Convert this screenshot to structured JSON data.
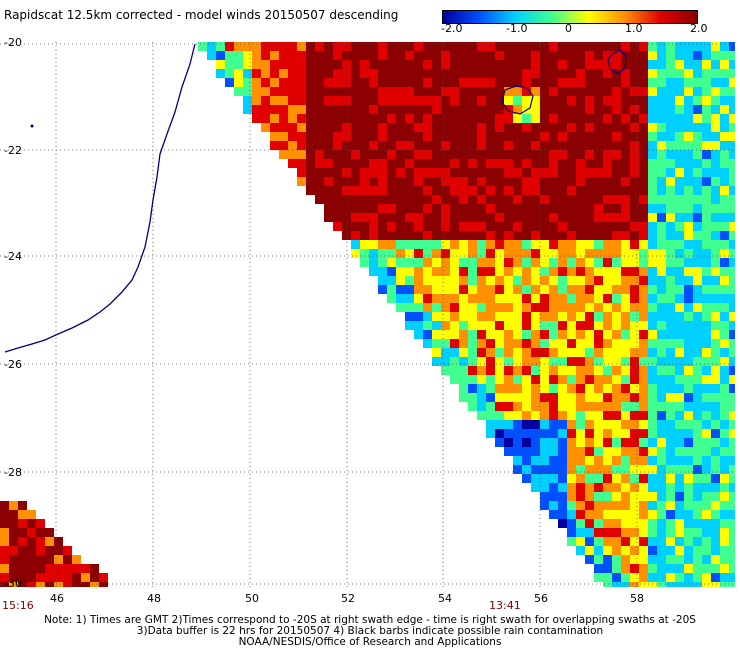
{
  "title": "Rapidscat 12.5km corrected - model winds 20150507 descending",
  "colorbar": {
    "ticks": [
      "-2.0",
      "-1.0",
      "0",
      "1.0",
      "2.0"
    ],
    "colors": [
      "#0000a0",
      "#0050ff",
      "#00d0ff",
      "#40ff90",
      "#ffff00",
      "#ff9000",
      "#e00000",
      "#8b0000"
    ]
  },
  "map": {
    "lat_labels": [
      "-20",
      "-22",
      "-24",
      "-26",
      "-28",
      "-30"
    ],
    "lon_labels": [
      "46",
      "48",
      "50",
      "52",
      "54",
      "56",
      "58"
    ],
    "coast_color": "#000080",
    "grid_color": "#505050"
  },
  "times": {
    "left": "15:16",
    "right": "13:41"
  },
  "notes": [
    "Note: 1) Times are GMT 2)Times correspond to -20S at right swath edge - time is right swath for overlapping swaths at -20S",
    "3)Data buffer is 22 hrs for 20150507 4) Black barbs indicate possible rain contamination",
    "NOAA/NESDIS/Office of Research and Applications"
  ]
}
